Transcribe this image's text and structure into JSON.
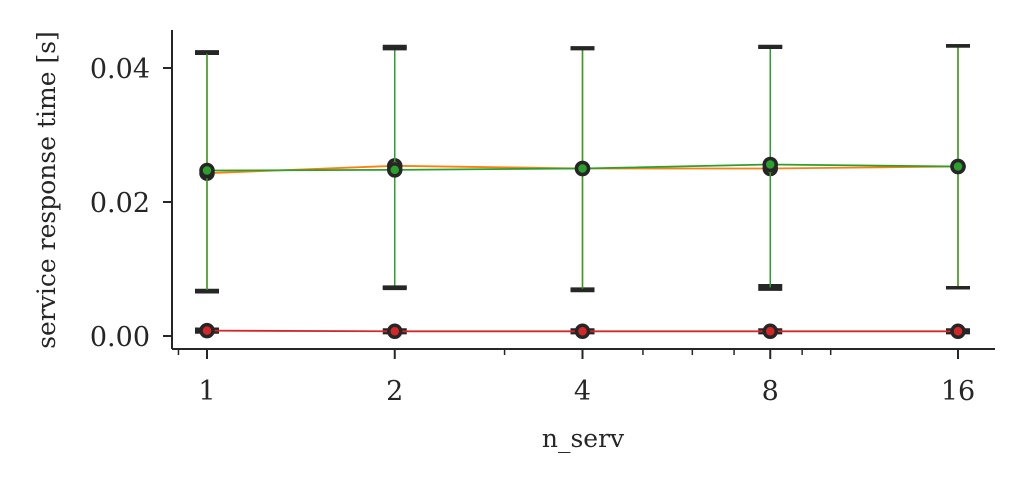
{
  "chart_data": {
    "type": "line",
    "xlabel": "n_serv",
    "ylabel": "service response time [s]",
    "x_scale": "log2",
    "x": [
      1,
      2,
      4,
      8,
      16
    ],
    "x_tick_labels": [
      "1",
      "2",
      "4",
      "8",
      "16"
    ],
    "ylim": [
      -0.0015,
      0.046
    ],
    "y_ticks": [
      0.0,
      0.02,
      0.04
    ],
    "y_tick_labels": [
      "0.00",
      "0.02",
      "0.04"
    ],
    "grid": false,
    "legend": "none",
    "series": [
      {
        "color": "#ff7f0e",
        "values": [
          0.0243,
          0.0254,
          0.025,
          0.025,
          0.0253
        ],
        "err_low": [
          0.0068,
          0.0071,
          0.007,
          0.0075,
          0.0072
        ],
        "err_high": [
          0.0422,
          0.0432,
          0.043,
          0.0432,
          0.0433
        ]
      },
      {
        "color": "#2ca02c",
        "values": [
          0.0247,
          0.0248,
          0.025,
          0.0256,
          0.0253
        ],
        "err_low": [
          0.0066,
          0.0073,
          0.0068,
          0.007,
          0.0072
        ],
        "err_high": [
          0.0424,
          0.0429,
          0.0429,
          0.0431,
          0.0433
        ]
      },
      {
        "color": "#d62728",
        "values": [
          0.0008,
          0.0007,
          0.0007,
          0.0007,
          0.0007
        ],
        "err_low": [
          0.0006,
          0.0005,
          0.0005,
          0.0005,
          0.0005
        ],
        "err_high": [
          0.001,
          0.0009,
          0.0009,
          0.0009,
          0.0009
        ]
      }
    ]
  }
}
